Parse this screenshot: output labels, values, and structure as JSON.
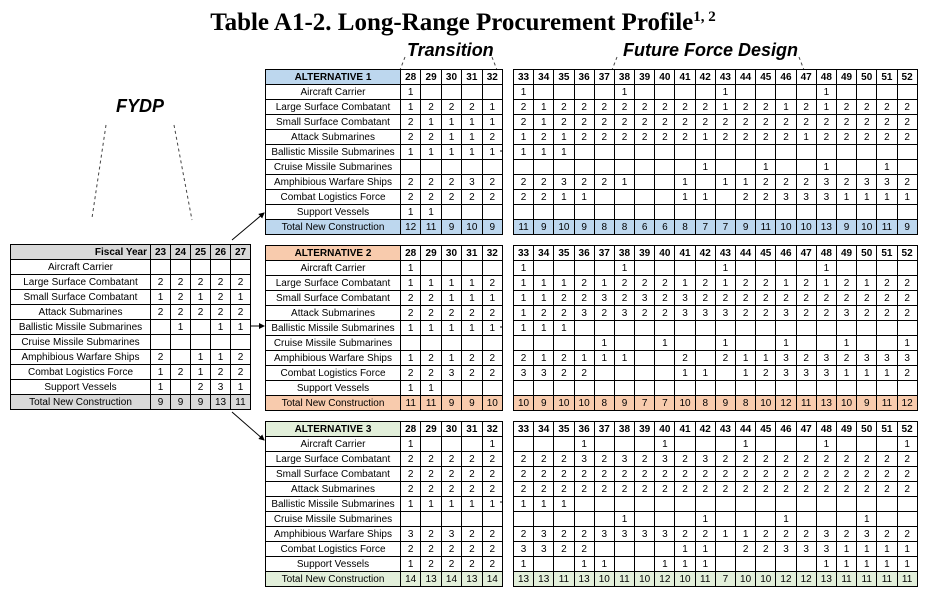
{
  "title": {
    "main": "Table A1-2.  Long-Range Procurement Profile",
    "sup": "1, 2"
  },
  "labels": {
    "fydp": "FYDP",
    "transition": "Transition",
    "future": "Future Force Design"
  },
  "colors": {
    "alt1": "#bdd7ee",
    "alt2": "#f8cbad",
    "alt3": "#e2efda",
    "fydp": "#d9d9d9"
  },
  "fydp": {
    "header": "Fiscal Year",
    "years": [
      "23",
      "24",
      "25",
      "26",
      "27"
    ],
    "rows": [
      {
        "label": "Aircraft Carrier",
        "values": [
          "",
          "",
          "",
          "",
          ""
        ]
      },
      {
        "label": "Large Surface Combatant",
        "values": [
          "2",
          "2",
          "2",
          "2",
          "2"
        ]
      },
      {
        "label": "Small Surface Combatant",
        "values": [
          "1",
          "2",
          "1",
          "2",
          "1"
        ]
      },
      {
        "label": "Attack Submarines",
        "values": [
          "2",
          "2",
          "2",
          "2",
          "2"
        ]
      },
      {
        "label": "Ballistic Missile Submarines",
        "values": [
          "",
          "1",
          "",
          "1",
          "1"
        ]
      },
      {
        "label": "Cruise Missile Submarines",
        "values": [
          "",
          "",
          "",
          "",
          ""
        ]
      },
      {
        "label": "Amphibious Warfare Ships",
        "values": [
          "2",
          "",
          "1",
          "1",
          "2"
        ]
      },
      {
        "label": "Combat Logistics Force",
        "values": [
          "1",
          "2",
          "1",
          "2",
          "2"
        ]
      },
      {
        "label": "Support Vessels",
        "values": [
          "1",
          "",
          "2",
          "3",
          "1"
        ]
      }
    ],
    "total": {
      "label": "Total New Construction",
      "values": [
        "9",
        "9",
        "9",
        "13",
        "11"
      ]
    }
  },
  "alternatives": [
    {
      "header": "ALTERNATIVE 1",
      "transition_years": [
        "28",
        "29",
        "30",
        "31",
        "32"
      ],
      "future_years": [
        "33",
        "34",
        "35",
        "36",
        "37",
        "38",
        "39",
        "40",
        "41",
        "42",
        "43",
        "44",
        "45",
        "46",
        "47",
        "48",
        "49",
        "50",
        "51",
        "52"
      ],
      "rows": [
        {
          "label": "Aircraft Carrier",
          "t": [
            "1",
            "",
            "",
            "",
            ""
          ],
          "f": [
            "1",
            "",
            "",
            "",
            "",
            "1",
            "",
            "",
            "",
            "",
            "1",
            "",
            "",
            "",
            "",
            "1",
            "",
            "",
            "",
            ""
          ]
        },
        {
          "label": "Large Surface Combatant",
          "t": [
            "1",
            "2",
            "2",
            "2",
            "1"
          ],
          "f": [
            "2",
            "1",
            "2",
            "2",
            "2",
            "2",
            "2",
            "2",
            "2",
            "2",
            "1",
            "2",
            "2",
            "1",
            "2",
            "1",
            "2",
            "2",
            "2",
            "2"
          ]
        },
        {
          "label": "Small Surface Combatant",
          "t": [
            "2",
            "1",
            "1",
            "1",
            "1"
          ],
          "f": [
            "2",
            "1",
            "2",
            "2",
            "2",
            "2",
            "2",
            "2",
            "2",
            "2",
            "2",
            "2",
            "2",
            "2",
            "2",
            "2",
            "2",
            "2",
            "2",
            "2"
          ]
        },
        {
          "label": "Attack Submarines",
          "t": [
            "2",
            "2",
            "1",
            "1",
            "2"
          ],
          "f": [
            "1",
            "2",
            "1",
            "2",
            "2",
            "2",
            "2",
            "2",
            "2",
            "1",
            "2",
            "2",
            "2",
            "2",
            "1",
            "2",
            "2",
            "2",
            "2",
            "2"
          ]
        },
        {
          "label": "Ballistic Missile Submarines",
          "t": [
            "1",
            "1",
            "1",
            "1",
            "1"
          ],
          "f": [
            "1",
            "1",
            "1",
            "",
            "",
            "",
            "",
            "",
            "",
            "",
            "",
            "",
            "",
            "",
            "",
            "",
            "",
            "",
            "",
            ""
          ]
        },
        {
          "label": "Cruise Missile Submarines",
          "t": [
            "",
            "",
            "",
            "",
            ""
          ],
          "f": [
            "",
            "",
            "",
            "",
            "",
            "",
            "",
            "",
            "",
            "1",
            "",
            "",
            "1",
            "",
            "",
            "1",
            "",
            "",
            "1",
            ""
          ]
        },
        {
          "label": "Amphibious Warfare Ships",
          "t": [
            "2",
            "2",
            "2",
            "3",
            "2"
          ],
          "f": [
            "2",
            "2",
            "3",
            "2",
            "2",
            "1",
            "",
            "",
            "1",
            "",
            "1",
            "1",
            "2",
            "2",
            "2",
            "3",
            "2",
            "3",
            "3",
            "2"
          ]
        },
        {
          "label": "Combat Logistics Force",
          "t": [
            "2",
            "2",
            "2",
            "2",
            "2"
          ],
          "f": [
            "2",
            "2",
            "1",
            "1",
            "",
            "",
            "",
            "",
            "1",
            "1",
            "",
            "2",
            "2",
            "3",
            "3",
            "3",
            "1",
            "1",
            "1",
            "1"
          ]
        },
        {
          "label": "Support Vessels",
          "t": [
            "1",
            "1",
            "",
            "",
            ""
          ],
          "f": [
            "",
            "",
            "",
            "",
            "",
            "",
            "",
            "",
            "",
            "",
            "",
            "",
            "",
            "",
            "",
            "",
            "",
            "",
            "",
            ""
          ]
        }
      ],
      "total": {
        "label": "Total New Construction",
        "t": [
          "12",
          "11",
          "9",
          "10",
          "9"
        ],
        "f": [
          "11",
          "9",
          "10",
          "9",
          "8",
          "8",
          "6",
          "6",
          "8",
          "7",
          "7",
          "9",
          "11",
          "10",
          "10",
          "13",
          "9",
          "10",
          "11",
          "9"
        ]
      }
    },
    {
      "header": "ALTERNATIVE 2",
      "transition_years": [
        "28",
        "29",
        "30",
        "31",
        "32"
      ],
      "future_years": [
        "33",
        "34",
        "35",
        "36",
        "37",
        "38",
        "39",
        "40",
        "41",
        "42",
        "43",
        "44",
        "45",
        "46",
        "47",
        "48",
        "49",
        "50",
        "51",
        "52"
      ],
      "rows": [
        {
          "label": "Aircraft Carrier",
          "t": [
            "1",
            "",
            "",
            "",
            ""
          ],
          "f": [
            "1",
            "",
            "",
            "",
            "",
            "1",
            "",
            "",
            "",
            "",
            "1",
            "",
            "",
            "",
            "",
            "1",
            "",
            "",
            "",
            ""
          ]
        },
        {
          "label": "Large Surface Combatant",
          "t": [
            "1",
            "1",
            "1",
            "1",
            "2"
          ],
          "f": [
            "1",
            "1",
            "1",
            "2",
            "1",
            "2",
            "2",
            "2",
            "1",
            "2",
            "1",
            "2",
            "2",
            "1",
            "2",
            "1",
            "2",
            "1",
            "2",
            "2"
          ]
        },
        {
          "label": "Small Surface Combatant",
          "t": [
            "2",
            "2",
            "1",
            "1",
            "1"
          ],
          "f": [
            "1",
            "1",
            "2",
            "2",
            "3",
            "2",
            "3",
            "2",
            "3",
            "2",
            "2",
            "2",
            "2",
            "2",
            "2",
            "2",
            "2",
            "2",
            "2",
            "2"
          ]
        },
        {
          "label": "Attack Submarines",
          "t": [
            "2",
            "2",
            "2",
            "2",
            "2"
          ],
          "f": [
            "1",
            "2",
            "2",
            "3",
            "2",
            "3",
            "2",
            "2",
            "3",
            "3",
            "3",
            "2",
            "2",
            "3",
            "2",
            "2",
            "3",
            "2",
            "2",
            "2"
          ]
        },
        {
          "label": "Ballistic Missile Submarines",
          "t": [
            "1",
            "1",
            "1",
            "1",
            "1"
          ],
          "f": [
            "1",
            "1",
            "1",
            "",
            "",
            "",
            "",
            "",
            "",
            "",
            "",
            "",
            "",
            "",
            "",
            "",
            "",
            "",
            "",
            ""
          ]
        },
        {
          "label": "Cruise Missile Submarines",
          "t": [
            "",
            "",
            "",
            "",
            ""
          ],
          "f": [
            "",
            "",
            "",
            "",
            "1",
            "",
            "",
            "1",
            "",
            "",
            "1",
            "",
            "",
            "1",
            "",
            "",
            "1",
            "",
            "",
            "1"
          ]
        },
        {
          "label": "Amphibious Warfare Ships",
          "t": [
            "1",
            "2",
            "1",
            "2",
            "2"
          ],
          "f": [
            "2",
            "1",
            "2",
            "1",
            "1",
            "1",
            "",
            "",
            "2",
            "",
            "2",
            "1",
            "1",
            "3",
            "2",
            "3",
            "2",
            "3",
            "3",
            "3"
          ]
        },
        {
          "label": "Combat Logistics Force",
          "t": [
            "2",
            "2",
            "3",
            "2",
            "2"
          ],
          "f": [
            "3",
            "3",
            "2",
            "2",
            "",
            "",
            "",
            "",
            "1",
            "1",
            "",
            "1",
            "2",
            "3",
            "3",
            "3",
            "1",
            "1",
            "1",
            "2"
          ]
        },
        {
          "label": "Support Vessels",
          "t": [
            "1",
            "1",
            "",
            "",
            ""
          ],
          "f": [
            "",
            "",
            "",
            "",
            "",
            "",
            "",
            "",
            "",
            "",
            "",
            "",
            "",
            "",
            "",
            "",
            "",
            "",
            "",
            ""
          ]
        }
      ],
      "total": {
        "label": "Total New Construction",
        "t": [
          "11",
          "11",
          "9",
          "9",
          "10"
        ],
        "f": [
          "10",
          "9",
          "10",
          "10",
          "8",
          "9",
          "7",
          "7",
          "10",
          "8",
          "9",
          "8",
          "10",
          "12",
          "11",
          "13",
          "10",
          "9",
          "11",
          "12"
        ]
      }
    },
    {
      "header": "ALTERNATIVE 3",
      "transition_years": [
        "28",
        "29",
        "30",
        "31",
        "32"
      ],
      "future_years": [
        "33",
        "34",
        "35",
        "36",
        "37",
        "38",
        "39",
        "40",
        "41",
        "42",
        "43",
        "44",
        "45",
        "46",
        "47",
        "48",
        "49",
        "50",
        "51",
        "52"
      ],
      "rows": [
        {
          "label": "Aircraft Carrier",
          "t": [
            "1",
            "",
            "",
            "",
            "1"
          ],
          "f": [
            "",
            "",
            "",
            "1",
            "",
            "",
            "",
            "1",
            "",
            "",
            "",
            "1",
            "",
            "",
            "",
            "1",
            "",
            "",
            "",
            "1"
          ]
        },
        {
          "label": "Large Surface Combatant",
          "t": [
            "2",
            "2",
            "2",
            "2",
            "2"
          ],
          "f": [
            "2",
            "2",
            "2",
            "3",
            "2",
            "3",
            "2",
            "3",
            "2",
            "3",
            "2",
            "2",
            "2",
            "2",
            "2",
            "2",
            "2",
            "2",
            "2",
            "2"
          ]
        },
        {
          "label": "Small Surface Combatant",
          "t": [
            "2",
            "2",
            "2",
            "2",
            "2"
          ],
          "f": [
            "2",
            "2",
            "2",
            "2",
            "2",
            "2",
            "2",
            "2",
            "2",
            "2",
            "2",
            "2",
            "2",
            "2",
            "2",
            "2",
            "2",
            "2",
            "2",
            "2"
          ]
        },
        {
          "label": "Attack Submarines",
          "t": [
            "2",
            "2",
            "2",
            "2",
            "2"
          ],
          "f": [
            "2",
            "2",
            "2",
            "2",
            "2",
            "2",
            "2",
            "2",
            "2",
            "2",
            "2",
            "2",
            "2",
            "2",
            "2",
            "2",
            "2",
            "2",
            "2",
            "2"
          ]
        },
        {
          "label": "Ballistic Missile Submarines",
          "t": [
            "1",
            "1",
            "1",
            "1",
            "1"
          ],
          "f": [
            "1",
            "1",
            "1",
            "",
            "",
            "",
            "",
            "",
            "",
            "",
            "",
            "",
            "",
            "",
            "",
            "",
            "",
            "",
            "",
            ""
          ]
        },
        {
          "label": "Cruise Missile Submarines",
          "t": [
            "",
            "",
            "",
            "",
            ""
          ],
          "f": [
            "",
            "",
            "",
            "",
            "",
            "1",
            "",
            "",
            "",
            "1",
            "",
            "",
            "",
            "1",
            "",
            "",
            "",
            "1",
            "",
            ""
          ]
        },
        {
          "label": "Amphibious Warfare Ships",
          "t": [
            "3",
            "2",
            "3",
            "2",
            "2"
          ],
          "f": [
            "2",
            "3",
            "2",
            "2",
            "3",
            "3",
            "3",
            "3",
            "2",
            "2",
            "1",
            "1",
            "2",
            "2",
            "2",
            "3",
            "2",
            "3",
            "2",
            "2"
          ]
        },
        {
          "label": "Combat Logistics Force",
          "t": [
            "2",
            "2",
            "2",
            "2",
            "2"
          ],
          "f": [
            "3",
            "3",
            "2",
            "2",
            "",
            "",
            "",
            "",
            "1",
            "1",
            "",
            "2",
            "2",
            "3",
            "3",
            "3",
            "1",
            "1",
            "1",
            "1"
          ]
        },
        {
          "label": "Support Vessels",
          "t": [
            "1",
            "2",
            "2",
            "2",
            "2"
          ],
          "f": [
            "1",
            "",
            "",
            "1",
            "1",
            "",
            "",
            "1",
            "1",
            "1",
            "",
            "",
            "",
            "",
            "",
            "1",
            "1",
            "1",
            "1",
            "1"
          ]
        }
      ],
      "total": {
        "label": "Total New Construction",
        "t": [
          "14",
          "13",
          "14",
          "13",
          "14"
        ],
        "f": [
          "13",
          "13",
          "11",
          "13",
          "10",
          "11",
          "10",
          "12",
          "10",
          "11",
          "7",
          "10",
          "10",
          "12",
          "12",
          "13",
          "11",
          "11",
          "11",
          "11"
        ]
      }
    }
  ]
}
